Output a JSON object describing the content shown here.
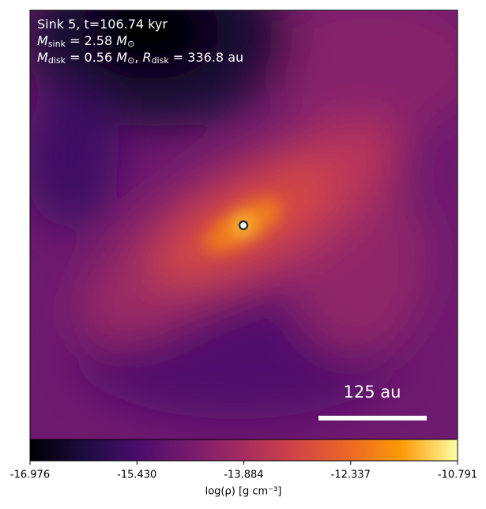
{
  "chart_data": {
    "type": "heatmap",
    "annotation": [
      [
        {
          "text": "Sink 5, t=106.74 kyr"
        }
      ],
      [
        {
          "text": "M"
        },
        {
          "sub": "sink"
        },
        {
          "text": " = 2.58 "
        },
        {
          "text": "M"
        },
        {
          "sub": "⊙"
        }
      ],
      [
        {
          "text": "M"
        },
        {
          "sub": "disk"
        },
        {
          "text": " = 0.56 "
        },
        {
          "text": "M"
        },
        {
          "sub": "⊙"
        },
        {
          "text": ", "
        },
        {
          "text": "R"
        },
        {
          "sub": "disk"
        },
        {
          "text": " = 336.8 au"
        }
      ]
    ],
    "scale_bar_label": "125 au",
    "colorbar_label": "log(ρ) [g cm⁻³]",
    "clim": [
      -16.976,
      -10.791
    ],
    "colorbar_ticks": [
      -16.976,
      -15.43,
      -13.884,
      -12.337,
      -10.791
    ],
    "colorbar_tick_labels": [
      "-16.976",
      "-15.430",
      "-13.884",
      "-12.337",
      "-10.791"
    ],
    "colormap": "inferno"
  }
}
